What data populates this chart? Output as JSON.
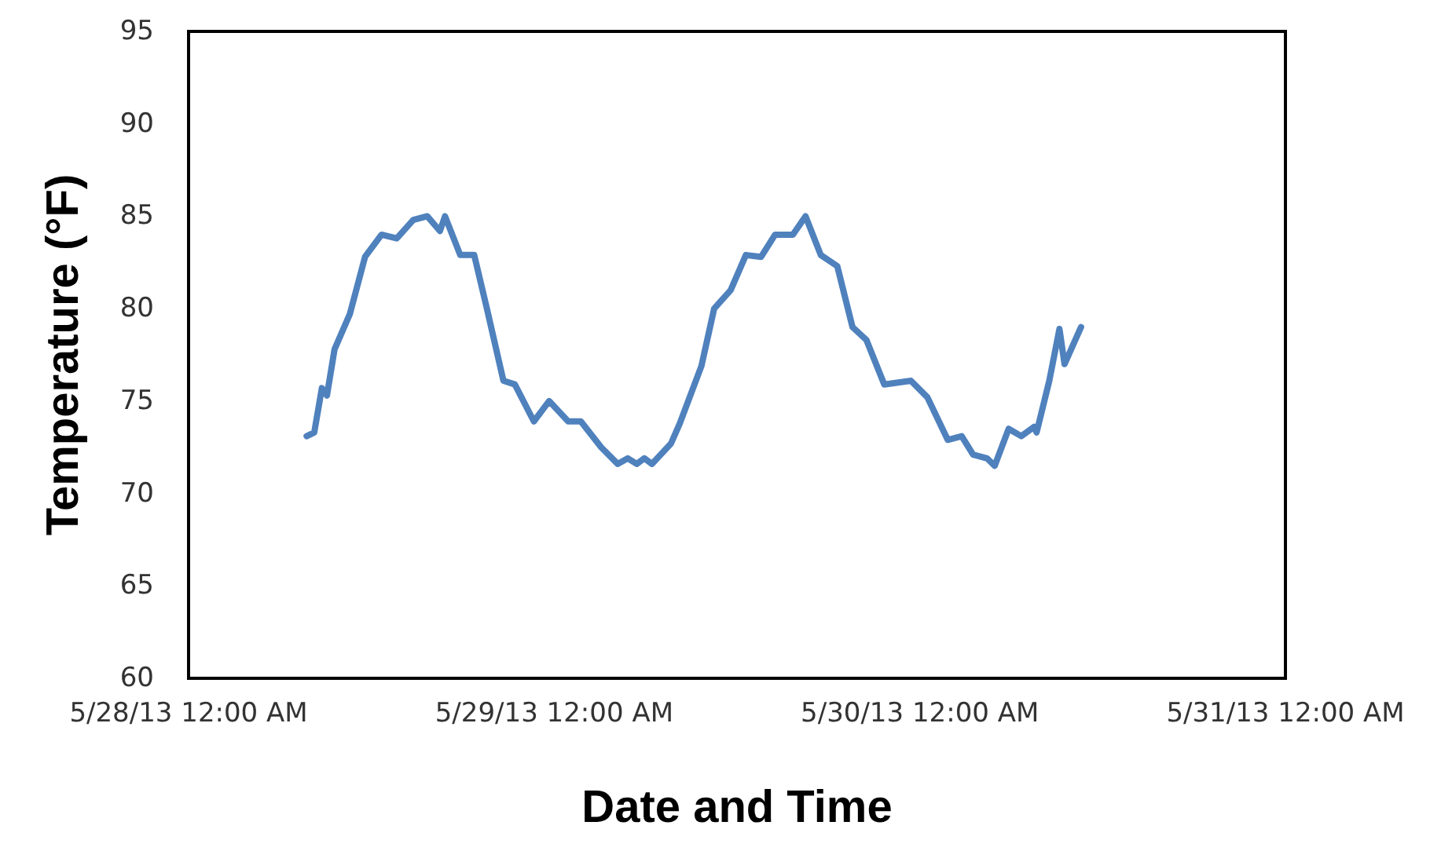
{
  "chart_data": {
    "type": "line",
    "xlabel": "Date and Time",
    "ylabel": "Temperature (°F)",
    "x": [
      "--05-28T07:45",
      "--05-28T08:15",
      "--05-28T08:45",
      "--05-28T09:05",
      "--05-28T09:35",
      "--05-28T10:35",
      "--05-28T11:35",
      "--05-28T12:40",
      "--05-28T13:40",
      "--05-28T14:45",
      "--05-28T15:40",
      "--05-28T16:30",
      "--05-28T16:50",
      "--05-28T17:50",
      "--05-28T18:45",
      "--05-28T19:35",
      "--05-28T20:40",
      "--05-28T21:25",
      "--05-28T22:40",
      "--05-28T23:40",
      "--05-29T00:55",
      "--05-29T01:45",
      "--05-29T03:05",
      "--05-29T04:10",
      "--05-29T04:50",
      "--05-29T05:25",
      "--05-29T05:55",
      "--05-29T06:25",
      "--05-29T07:40",
      "--05-29T08:15",
      "--05-29T09:40",
      "--05-29T10:30",
      "--05-29T11:35",
      "--05-29T12:35",
      "--05-29T13:35",
      "--05-29T14:30",
      "--05-29T15:40",
      "--05-29T16:30",
      "--05-29T17:30",
      "--05-29T18:35",
      "--05-29T19:35",
      "--05-29T20:30",
      "--05-29T21:40",
      "--05-29T23:25",
      "--05-30T00:30",
      "--05-30T01:50",
      "--05-30T02:45",
      "--05-30T03:30",
      "--05-30T04:25",
      "--05-30T04:55",
      "--05-30T05:50",
      "--05-30T06:40",
      "--05-30T07:30",
      "--05-30T07:40",
      "--05-30T08:30",
      "--05-30T09:10",
      "--05-30T09:30",
      "--05-30T10:35"
    ],
    "series": [
      {
        "color": "#4f81bd",
        "values": [
          73.1,
          73.3,
          75.7,
          75.3,
          77.8,
          79.7,
          82.8,
          84.0,
          83.8,
          84.8,
          85.0,
          84.2,
          85.0,
          82.9,
          82.9,
          80.0,
          76.1,
          75.9,
          73.9,
          75.0,
          73.9,
          73.9,
          72.5,
          71.6,
          71.9,
          71.6,
          71.9,
          71.6,
          72.7,
          73.8,
          76.9,
          80.0,
          81.0,
          82.9,
          82.8,
          84.0,
          84.0,
          85.0,
          82.9,
          82.3,
          79.0,
          78.3,
          75.9,
          76.1,
          75.2,
          72.9,
          73.1,
          72.1,
          71.9,
          71.5,
          73.5,
          73.1,
          73.6,
          73.3,
          76.1,
          78.9,
          77.0,
          79.0
        ]
      }
    ],
    "xlim": [
      "--05-28T00:00",
      "--05-31T00:00"
    ],
    "xticks": [
      {
        "value": "--05-28T00:00",
        "label": "5/28/13 12:00 AM"
      },
      {
        "value": "--05-29T00:00",
        "label": "5/29/13 12:00 AM"
      },
      {
        "value": "--05-30T00:00",
        "label": "5/30/13 12:00 AM"
      },
      {
        "value": "--05-31T00:00",
        "label": "5/31/13 12:00 AM"
      }
    ],
    "ylim": [
      60,
      95
    ],
    "yticks": [
      60,
      65,
      70,
      75,
      80,
      85,
      90,
      95
    ],
    "grid": false,
    "marker": "none",
    "line_style": "solid"
  }
}
